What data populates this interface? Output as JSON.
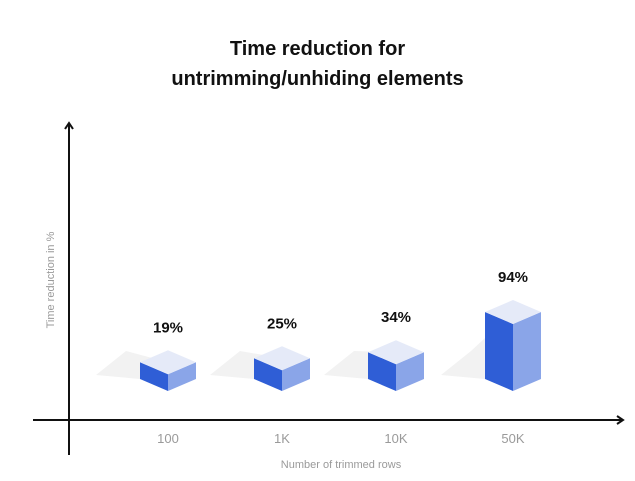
{
  "chart_data": {
    "type": "bar",
    "title_lines": [
      "Time reduction for",
      "untrimming/unhiding elements"
    ],
    "xlabel": "Number of trimmed rows",
    "ylabel": "Time reduction in %",
    "categories": [
      "100",
      "1K",
      "10K",
      "50K"
    ],
    "values": [
      19,
      25,
      34,
      94
    ],
    "value_labels": [
      "19%",
      "25%",
      "34%",
      "94%"
    ],
    "grid": false,
    "style": "isometric 3D boxes"
  },
  "colors": {
    "bar_front": "#2f5ed6",
    "bar_side": "#8aa5e8",
    "bar_top": "#e5eaf8",
    "shadow": "#f2f2f2",
    "axis": "#111111",
    "label": "#9a9a9a"
  }
}
